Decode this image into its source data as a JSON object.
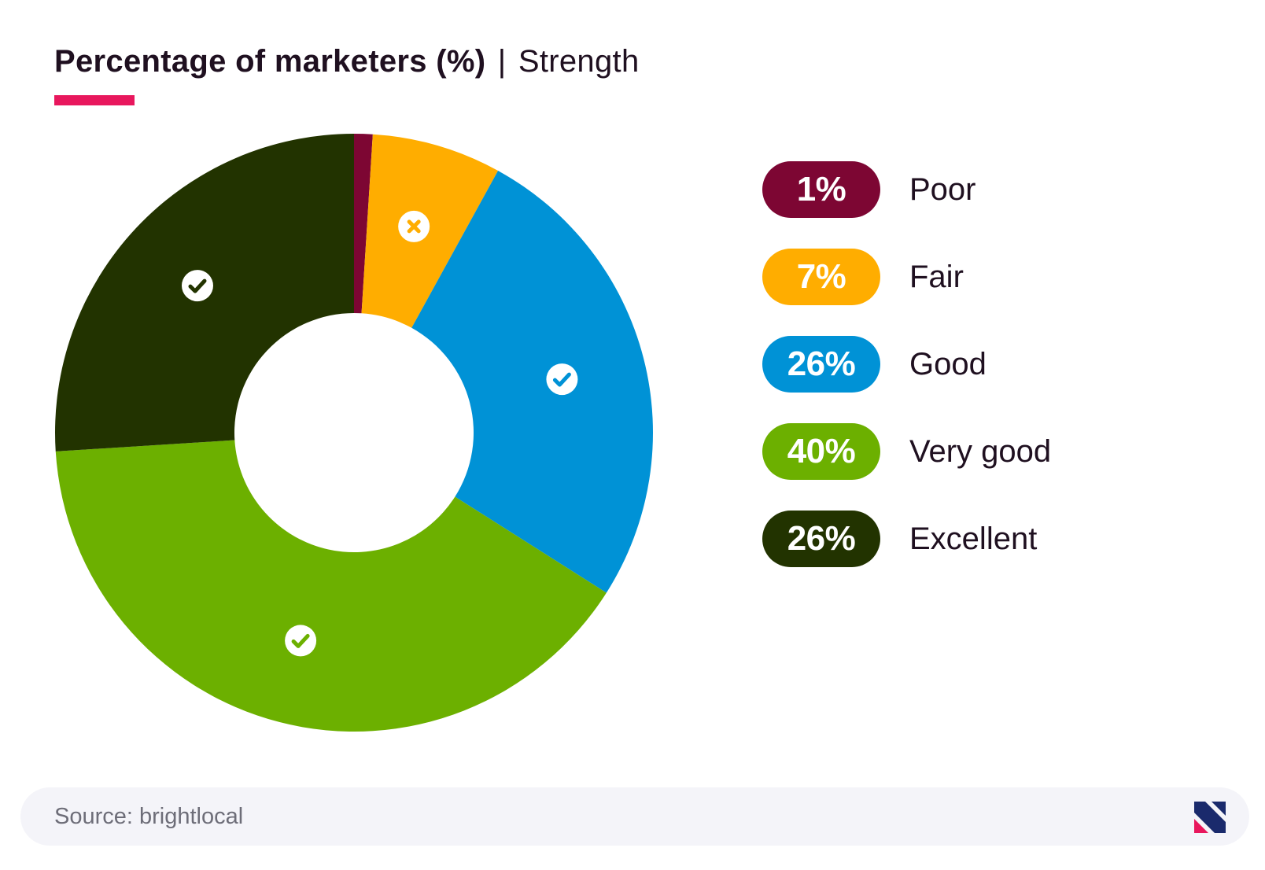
{
  "title": {
    "bold": "Percentage of marketers (%)",
    "separator": "|",
    "light": "Strength"
  },
  "accent_color": "#e8175d",
  "chart_data": {
    "type": "pie",
    "donut": true,
    "title": "Percentage of marketers (%) | Strength",
    "categories": [
      "Poor",
      "Fair",
      "Good",
      "Very good",
      "Excellent"
    ],
    "values": [
      1,
      7,
      26,
      40,
      26
    ],
    "labels": [
      "1%",
      "7%",
      "26%",
      "40%",
      "26%"
    ],
    "colors": [
      "#7d0633",
      "#ffad00",
      "#0092d6",
      "#6cb000",
      "#223300"
    ],
    "slice_icons": [
      "none",
      "cross-icon",
      "check-icon",
      "check-icon",
      "check-icon"
    ],
    "legend_position": "right"
  },
  "footer": {
    "source": "Source: brightlocal",
    "logo_icon": "brightlocal-logo-icon"
  }
}
